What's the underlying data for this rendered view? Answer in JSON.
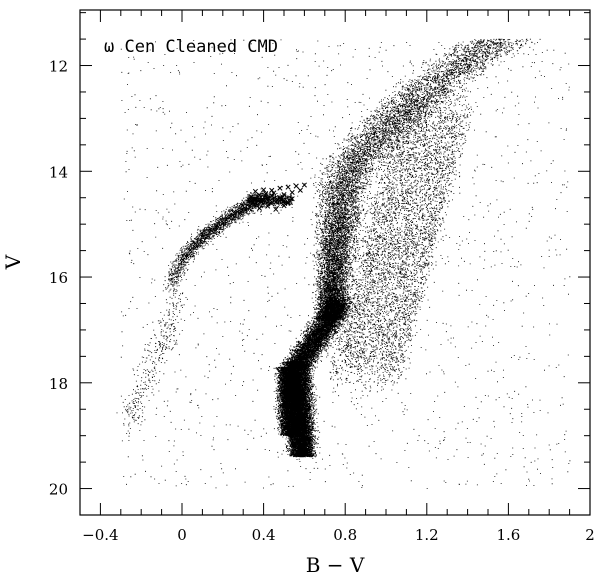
{
  "chart_data": {
    "type": "scatter",
    "title": "ω Cen Cleaned CMD",
    "xlabel": "B − V",
    "ylabel": "V",
    "xlim": [
      -0.5,
      2.0
    ],
    "ylim": [
      20.5,
      10.95
    ],
    "y_inverted": true,
    "xticks": [
      -0.4,
      0,
      0.4,
      0.8,
      1.2,
      1.6,
      2
    ],
    "xtick_labels": [
      "−0.4",
      "0",
      "0.4",
      "0.8",
      "1.2",
      "1.6",
      "2"
    ],
    "yticks": [
      12,
      14,
      16,
      18,
      20
    ],
    "ytick_labels": [
      "12",
      "14",
      "16",
      "18",
      "20"
    ],
    "grid": false,
    "colors": {
      "points": "#000000",
      "axes": "#000000"
    },
    "series": [
      {
        "marker": "dot",
        "regions": [
          {
            "desc": "main-sequence turnoff and upper main sequence",
            "bv_range": [
              0.5,
              0.7
            ],
            "v_range": [
              17.5,
              19.4
            ]
          },
          {
            "desc": "subgiant branch",
            "bv_range": [
              0.55,
              0.85
            ],
            "v_range": [
              16.5,
              17.8
            ]
          },
          {
            "desc": "red giant branch",
            "bv_range": [
              0.75,
              1.75
            ],
            "v_range": [
              11.4,
              16.8
            ]
          },
          {
            "desc": "blue horizontal branch",
            "bv_range": [
              -0.15,
              0.35
            ],
            "v_range": [
              14.5,
              16.6
            ]
          },
          {
            "desc": "extreme blue tail",
            "bv_range": [
              -0.3,
              0.0
            ],
            "v_range": [
              16.6,
              19.0
            ]
          }
        ],
        "point_count_estimate": 60000
      },
      {
        "marker": "x",
        "desc": "RR Lyrae region",
        "points": [
          [
            0.34,
            14.48
          ],
          [
            0.36,
            14.52
          ],
          [
            0.38,
            14.45
          ],
          [
            0.4,
            14.55
          ],
          [
            0.42,
            14.5
          ],
          [
            0.44,
            14.46
          ],
          [
            0.46,
            14.58
          ],
          [
            0.48,
            14.5
          ],
          [
            0.5,
            14.44
          ],
          [
            0.52,
            14.6
          ],
          [
            0.54,
            14.52
          ],
          [
            0.36,
            14.38
          ],
          [
            0.4,
            14.35
          ],
          [
            0.44,
            14.36
          ],
          [
            0.48,
            14.32
          ],
          [
            0.52,
            14.3
          ],
          [
            0.56,
            14.28
          ],
          [
            0.6,
            14.26
          ],
          [
            0.38,
            14.7
          ],
          [
            0.42,
            14.66
          ],
          [
            0.46,
            14.72
          ],
          [
            0.5,
            14.65
          ],
          [
            0.54,
            14.4
          ],
          [
            0.58,
            14.36
          ],
          [
            0.34,
            14.62
          ],
          [
            0.39,
            14.58
          ],
          [
            0.45,
            14.41
          ],
          [
            0.5,
            14.56
          ],
          [
            0.33,
            14.55
          ],
          [
            0.41,
            14.42
          ]
        ]
      }
    ]
  }
}
